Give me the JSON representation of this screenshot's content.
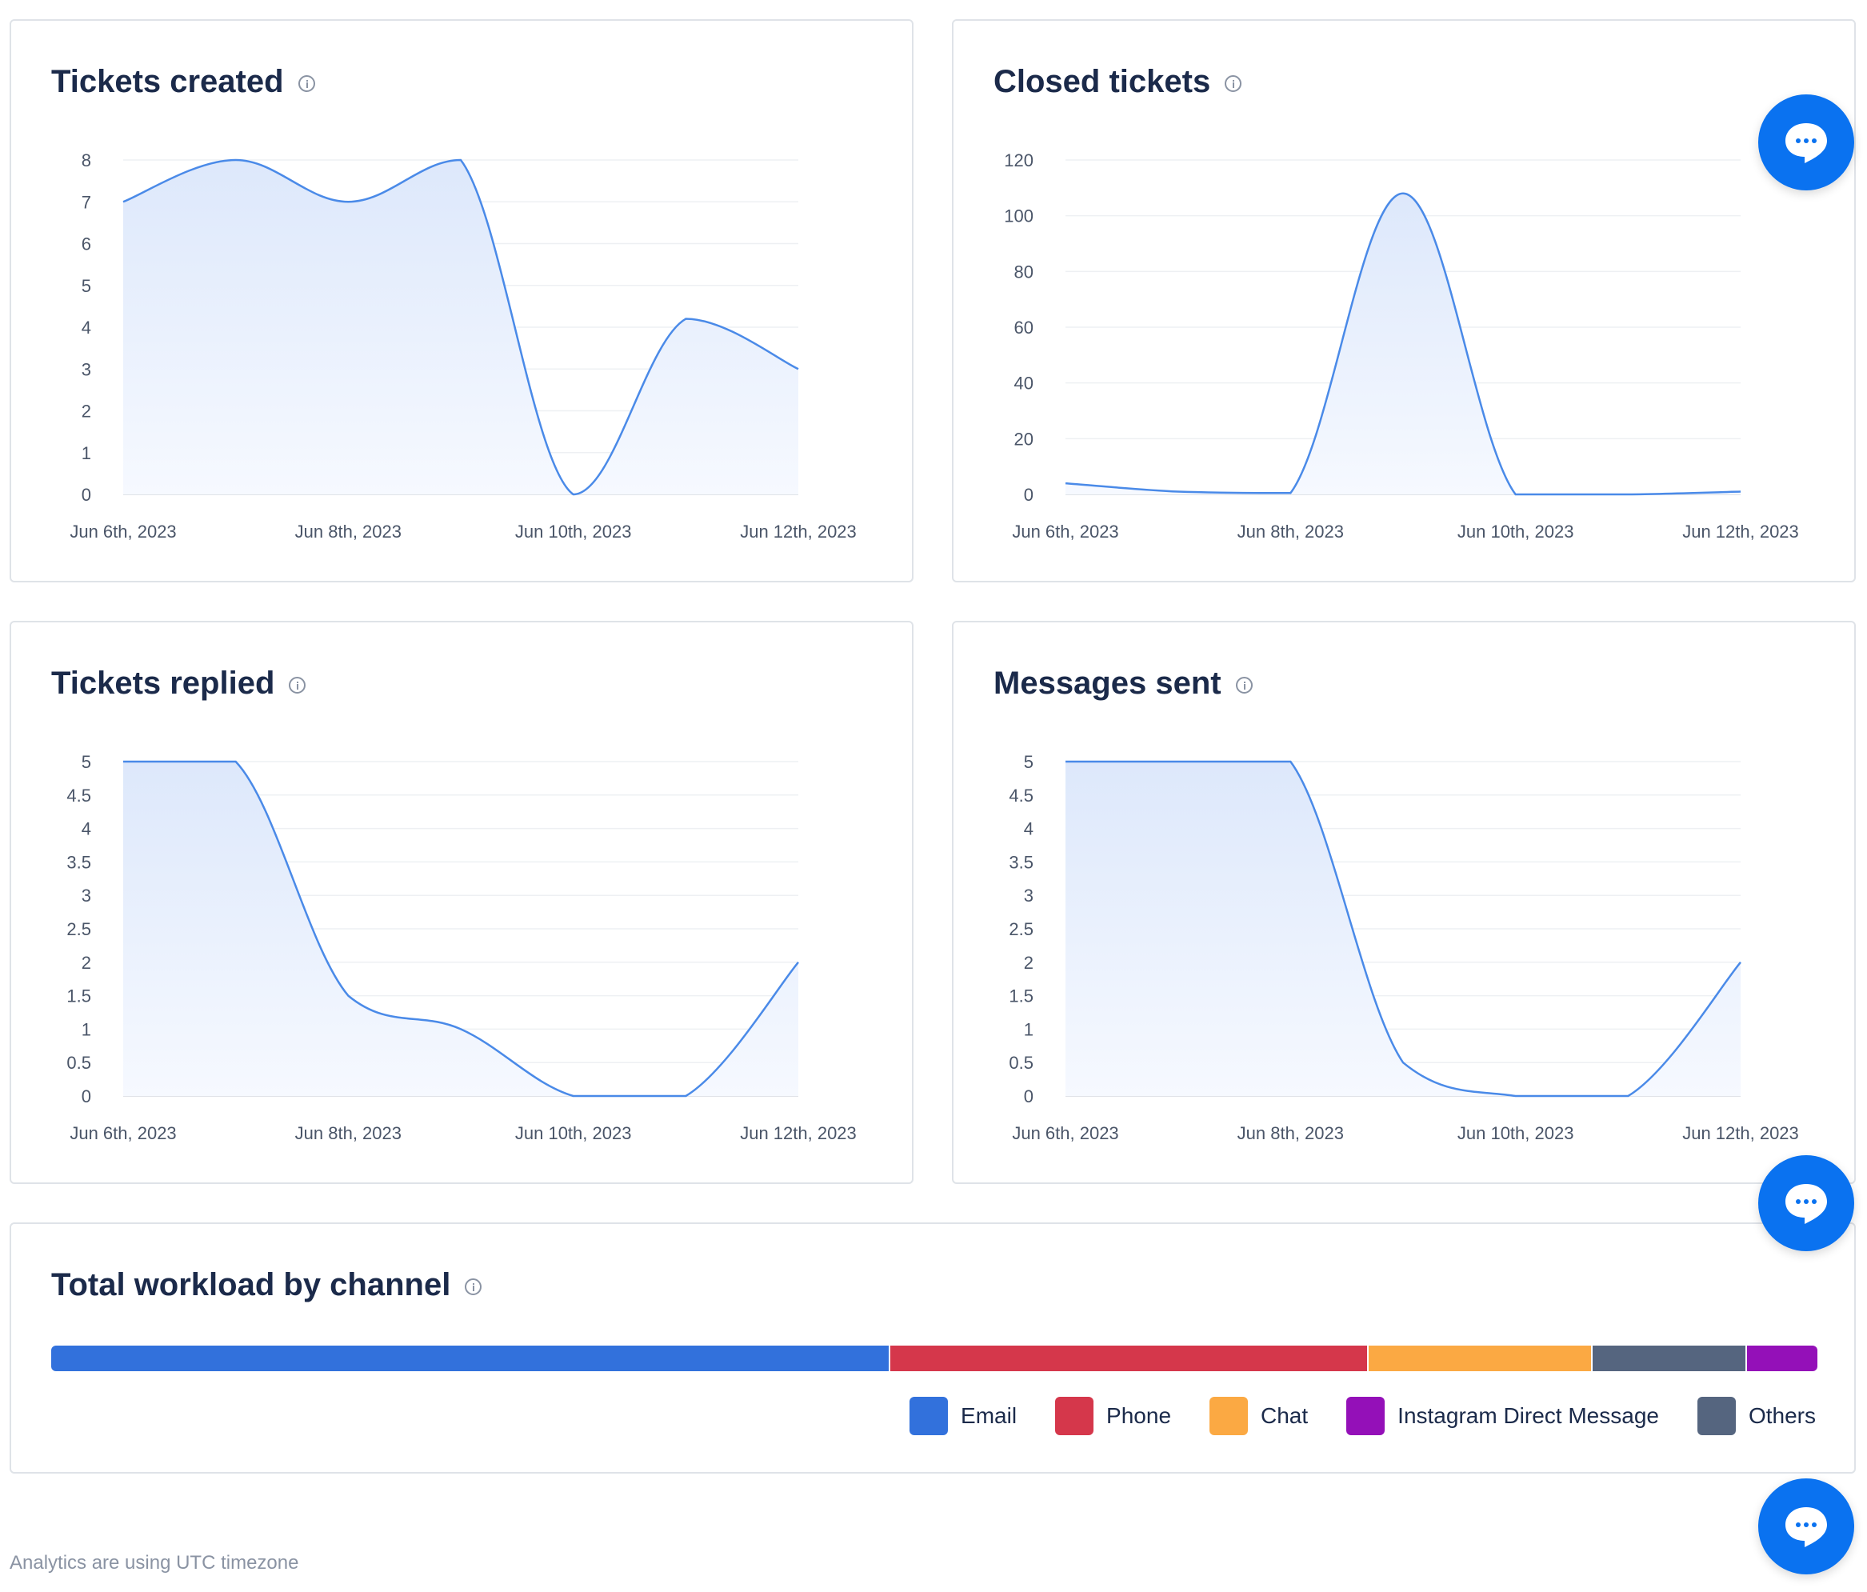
{
  "cards": {
    "tickets_created": {
      "title": "Tickets created"
    },
    "closed_tickets": {
      "title": "Closed tickets"
    },
    "tickets_replied": {
      "title": "Tickets replied"
    },
    "messages_sent": {
      "title": "Messages sent"
    },
    "workload": {
      "title": "Total workload by channel"
    }
  },
  "footer_note": "Analytics are using UTC timezone",
  "colors": {
    "line": "#4a8ae8",
    "fill_top": "#dde8fb",
    "fill_bottom": "#f6f9ff",
    "chat_button": "#0a72f0"
  },
  "chart_data": [
    {
      "type": "area",
      "title": "Tickets created",
      "x_tick_labels": [
        "Jun 6th, 2023",
        "Jun 8th, 2023",
        "Jun 10th, 2023",
        "Jun 12th, 2023"
      ],
      "y_tick_labels": [
        "0",
        "1",
        "2",
        "3",
        "4",
        "5",
        "6",
        "7",
        "8"
      ],
      "ylim": [
        0,
        8
      ],
      "x": [
        "Jun 6th, 2023",
        "Jun 7th, 2023",
        "Jun 8th, 2023",
        "Jun 9th, 2023",
        "Jun 10th, 2023",
        "Jun 11th, 2023",
        "Jun 12th, 2023"
      ],
      "values": [
        7,
        8,
        7,
        8,
        0,
        4.2,
        3
      ]
    },
    {
      "type": "area",
      "title": "Closed tickets",
      "x_tick_labels": [
        "Jun 6th, 2023",
        "Jun 8th, 2023",
        "Jun 10th, 2023",
        "Jun 12th, 2023"
      ],
      "y_tick_labels": [
        "0",
        "20",
        "40",
        "60",
        "80",
        "100",
        "120"
      ],
      "ylim": [
        0,
        120
      ],
      "x": [
        "Jun 6th, 2023",
        "Jun 7th, 2023",
        "Jun 8th, 2023",
        "Jun 9th, 2023",
        "Jun 10th, 2023",
        "Jun 11th, 2023",
        "Jun 12th, 2023"
      ],
      "values": [
        4,
        1,
        0.5,
        108,
        0,
        0,
        1
      ]
    },
    {
      "type": "area",
      "title": "Tickets replied",
      "x_tick_labels": [
        "Jun 6th, 2023",
        "Jun 8th, 2023",
        "Jun 10th, 2023",
        "Jun 12th, 2023"
      ],
      "y_tick_labels": [
        "0",
        "0.5",
        "1",
        "1.5",
        "2",
        "2.5",
        "3",
        "3.5",
        "4",
        "4.5",
        "5"
      ],
      "ylim": [
        0,
        5
      ],
      "x": [
        "Jun 6th, 2023",
        "Jun 7th, 2023",
        "Jun 8th, 2023",
        "Jun 9th, 2023",
        "Jun 10th, 2023",
        "Jun 11th, 2023",
        "Jun 12th, 2023"
      ],
      "values": [
        5,
        5,
        1.5,
        1,
        0,
        0,
        2
      ]
    },
    {
      "type": "area",
      "title": "Messages sent",
      "x_tick_labels": [
        "Jun 6th, 2023",
        "Jun 8th, 2023",
        "Jun 10th, 2023",
        "Jun 12th, 2023"
      ],
      "y_tick_labels": [
        "0",
        "0.5",
        "1",
        "1.5",
        "2",
        "2.5",
        "3",
        "3.5",
        "4",
        "4.5",
        "5"
      ],
      "ylim": [
        0,
        5
      ],
      "x": [
        "Jun 6th, 2023",
        "Jun 7th, 2023",
        "Jun 8th, 2023",
        "Jun 9th, 2023",
        "Jun 10th, 2023",
        "Jun 11th, 2023",
        "Jun 12th, 2023"
      ],
      "values": [
        5,
        5,
        5,
        0.5,
        0,
        0,
        2
      ]
    },
    {
      "type": "bar",
      "title": "Total workload by channel",
      "orientation": "horizontal-stacked",
      "series": [
        {
          "name": "Email",
          "share": 0.476,
          "color": "#3271dc"
        },
        {
          "name": "Phone",
          "share": 0.271,
          "color": "#d5374b"
        },
        {
          "name": "Chat",
          "share": 0.126,
          "color": "#fba943"
        },
        {
          "name": "Others",
          "share": 0.087,
          "color": "#55657f"
        },
        {
          "name": "Instagram Direct Message",
          "share": 0.04,
          "color": "#9410b8"
        }
      ],
      "legend": [
        "Email",
        "Phone",
        "Chat",
        "Instagram Direct Message",
        "Others"
      ]
    }
  ]
}
